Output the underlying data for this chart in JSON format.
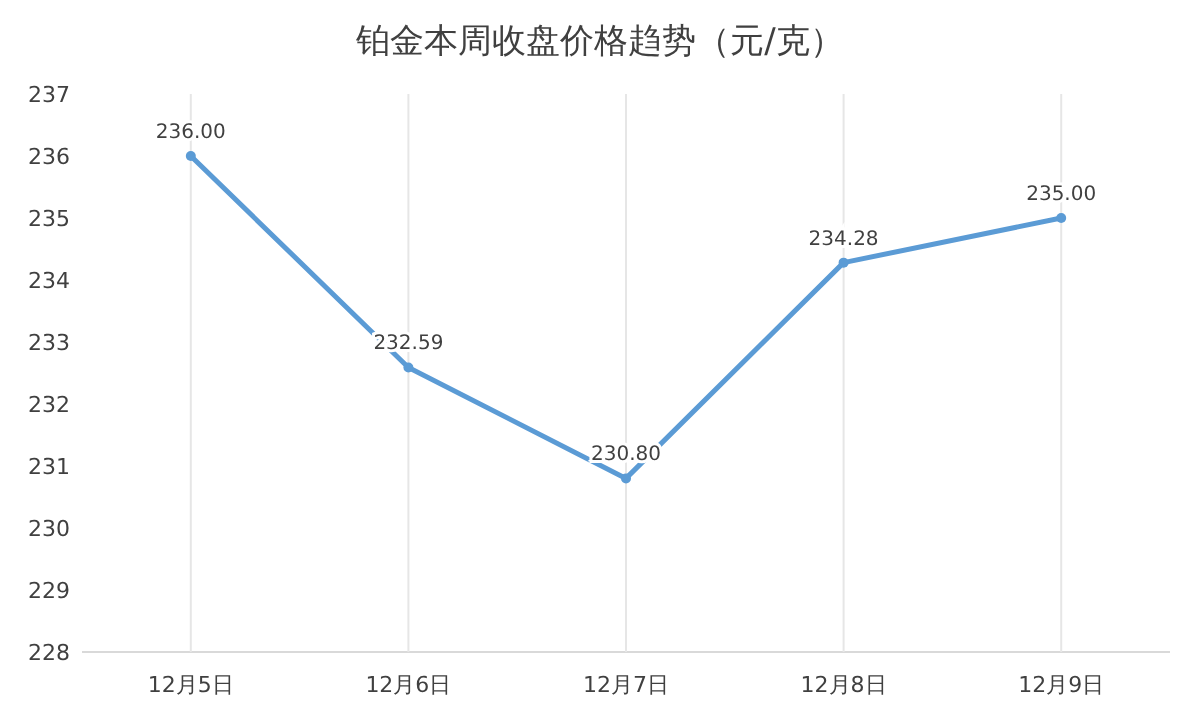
{
  "chart_data": {
    "type": "line",
    "title": "铂金本周收盘价格趋势（元/克）",
    "categories": [
      "12月5日",
      "12月6日",
      "12月7日",
      "12月8日",
      "12月9日"
    ],
    "series": [
      {
        "color": "#5b9bd5",
        "values": [
          236.0,
          232.59,
          230.8,
          234.28,
          235.0
        ],
        "value_labels": [
          "236.00",
          "232.59",
          "230.80",
          "234.28",
          "235.00"
        ]
      }
    ],
    "ylim": [
      228,
      237
    ],
    "yticks": [
      228,
      229,
      230,
      231,
      232,
      233,
      234,
      235,
      236,
      237
    ],
    "grid": "x",
    "marker": "circle"
  }
}
